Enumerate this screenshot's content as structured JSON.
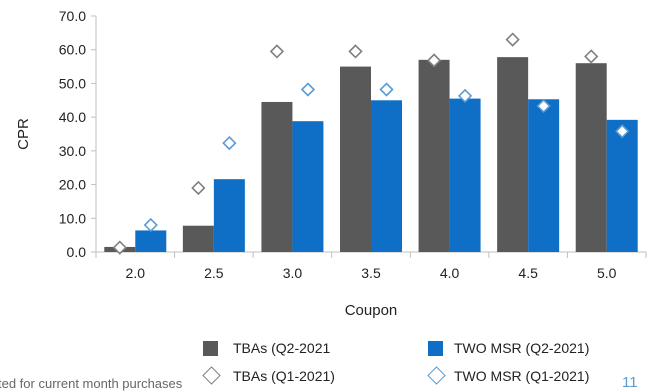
{
  "chart_data": {
    "type": "bar",
    "categories": [
      "2.0",
      "2.5",
      "3.0",
      "3.5",
      "4.0",
      "4.5",
      "5.0"
    ],
    "series": [
      {
        "name": "TBAs (Q2-2021",
        "kind": "bar",
        "color": "#595959",
        "values": [
          1.5,
          7.8,
          44.5,
          55.0,
          57.0,
          57.8,
          56.0
        ]
      },
      {
        "name": "TWO MSR (Q2-2021)",
        "kind": "bar",
        "color": "#0f6fc6",
        "values": [
          6.4,
          21.6,
          38.8,
          45.0,
          45.5,
          45.3,
          39.2
        ]
      },
      {
        "name": "TBAs (Q1-2021)",
        "kind": "marker",
        "color": "#7f7f7f",
        "values": [
          1.3,
          19.0,
          59.5,
          59.5,
          56.8,
          63.0,
          58.0
        ]
      },
      {
        "name": "TWO MSR (Q1-2021)",
        "kind": "marker",
        "color": "#5b9bd5",
        "values": [
          8.0,
          32.3,
          48.2,
          48.2,
          46.3,
          43.3,
          35.8
        ]
      }
    ],
    "xlabel": "Coupon",
    "ylabel": "CPR",
    "ylim": [
      0,
      70
    ],
    "yticks": [
      "0.0",
      "10.0",
      "20.0",
      "30.0",
      "40.0",
      "50.0",
      "60.0",
      "70.0"
    ],
    "grid": false,
    "legend_position": "bottom"
  },
  "footer": {
    "note": "ted for current month purchases",
    "page_number": "11"
  }
}
